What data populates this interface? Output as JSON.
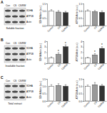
{
  "panels": [
    {
      "letter": "A",
      "title": "Soluble fraction",
      "lanes": [
        "Con",
        "CS",
        "CS/RW"
      ],
      "bands": [
        "SDHA",
        "ATP5B",
        "Actin"
      ]
    },
    {
      "letter": "B",
      "title": "Insoluble fraction",
      "lanes": [
        "Con",
        "CS",
        "CS/RW"
      ],
      "bands": [
        "SDHA",
        "ATP5B",
        "Actin"
      ]
    },
    {
      "letter": "C",
      "title": "Total extract",
      "lanes": [
        "Con",
        "CS",
        "CS/RW"
      ],
      "bands": [
        "SDHA",
        "ATP5B",
        "Actin"
      ]
    }
  ],
  "chart_data": [
    {
      "type": "bar",
      "y_label": "SDHA/Actin (a.u.)",
      "categories": [
        "Control",
        "CS",
        "CS/RW"
      ],
      "values": [
        1.0,
        0.92,
        0.88
      ],
      "errors": [
        0.08,
        0.1,
        0.09
      ],
      "colors": [
        "#ffffff",
        "#999999",
        "#333333"
      ],
      "ylim": [
        0,
        1.5
      ],
      "yticks": [
        {
          "value": 0,
          "label": "0.0"
        },
        {
          "value": 0.5,
          "label": "0.5"
        },
        {
          "value": 1,
          "label": "1.0"
        },
        {
          "value": 1.5,
          "label": "1.5"
        }
      ]
    },
    {
      "type": "bar",
      "y_label": "ATP5B/Actin (a.u.)",
      "categories": [
        "Control",
        "CS",
        "CS/RW"
      ],
      "values": [
        1.0,
        0.95,
        0.9
      ],
      "errors": [
        0.07,
        0.08,
        0.1
      ],
      "colors": [
        "#ffffff",
        "#999999",
        "#333333"
      ],
      "ylim": [
        0,
        1.5
      ],
      "yticks": [
        {
          "value": 0,
          "label": "0.0"
        },
        {
          "value": 0.5,
          "label": "0.5"
        },
        {
          "value": 1,
          "label": "1.0"
        },
        {
          "value": 1.5,
          "label": "1.5"
        }
      ]
    },
    {
      "type": "bar",
      "y_label": "SDHA/Actin (a.u.)",
      "categories": [
        "Control",
        "CS",
        "CS/RW"
      ],
      "values": [
        1.0,
        1.6,
        3.0
      ],
      "errors": [
        0.15,
        0.3,
        0.35
      ],
      "colors": [
        "#ffffff",
        "#999999",
        "#333333"
      ],
      "ylim": [
        0,
        4
      ],
      "yticks": [
        0,
        1,
        2,
        3,
        4
      ],
      "annotations": [
        {
          "text": "*",
          "category": "CS"
        },
        {
          "text": "*",
          "category": "CS/RW"
        }
      ]
    },
    {
      "type": "bar",
      "y_label": "ATP5B/Actin (a.u.)",
      "categories": [
        "Control",
        "CS",
        "CS/RW"
      ],
      "values": [
        1.0,
        1.5,
        2.7
      ],
      "errors": [
        0.1,
        0.25,
        0.3
      ],
      "colors": [
        "#ffffff",
        "#999999",
        "#333333"
      ],
      "ylim": [
        0,
        4
      ],
      "yticks": [
        0,
        1,
        2,
        3,
        4
      ],
      "annotations": [
        {
          "text": "*",
          "category": "CS"
        },
        {
          "text": "*",
          "category": "CS/RW"
        }
      ]
    },
    {
      "type": "bar",
      "y_label": "SDHA/Actin (a.u.)",
      "categories": [
        "Control",
        "CS",
        "CS/RW"
      ],
      "values": [
        1.0,
        1.05,
        1.0
      ],
      "errors": [
        0.1,
        0.12,
        0.1
      ],
      "colors": [
        "#ffffff",
        "#999999",
        "#333333"
      ],
      "ylim": [
        0,
        1.5
      ],
      "yticks": [
        {
          "value": 0,
          "label": "0.0"
        },
        {
          "value": 0.5,
          "label": "0.5"
        },
        {
          "value": 1,
          "label": "1.0"
        },
        {
          "value": 1.5,
          "label": "1.5"
        }
      ]
    },
    {
      "type": "bar",
      "y_label": "ATP5B/Actin (a.u.)",
      "categories": [
        "Control",
        "CS",
        "CS/RW"
      ],
      "values": [
        1.0,
        1.1,
        1.02
      ],
      "errors": [
        0.08,
        0.15,
        0.1
      ],
      "colors": [
        "#ffffff",
        "#999999",
        "#333333"
      ],
      "ylim": [
        0,
        1.5
      ],
      "yticks": [
        {
          "value": 0,
          "label": "0.0"
        },
        {
          "value": 0.5,
          "label": "0.5"
        },
        {
          "value": 1,
          "label": "1.0"
        },
        {
          "value": 1.5,
          "label": "1.5"
        }
      ]
    }
  ]
}
